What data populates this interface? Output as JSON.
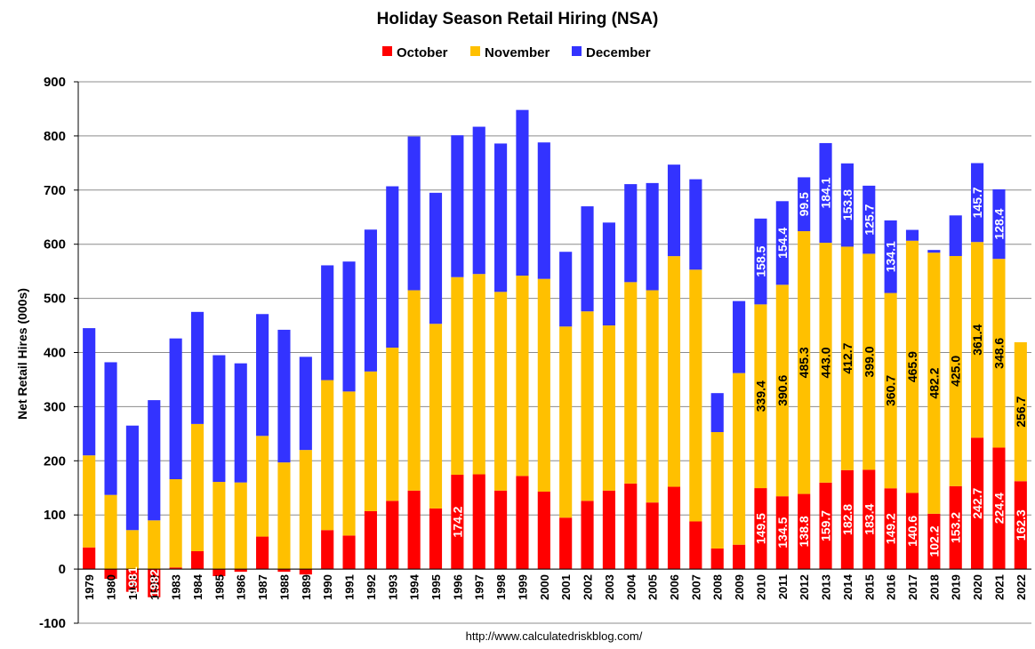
{
  "chart_data": {
    "type": "bar",
    "stacked": true,
    "title": "Holiday Season Retail Hiring (NSA)",
    "ylabel": "Net Retail Hires (000s)",
    "xlabel": "",
    "footer": "http://www.calculatedriskblog.com/",
    "ylim": [
      -100,
      900
    ],
    "yticks": [
      -100,
      0,
      100,
      200,
      300,
      400,
      500,
      600,
      700,
      800,
      900
    ],
    "grid": true,
    "legend_position": "top",
    "categories": [
      "1979",
      "1980",
      "1981",
      "1982",
      "1983",
      "1984",
      "1985",
      "1986",
      "1987",
      "1988",
      "1989",
      "1990",
      "1991",
      "1992",
      "1993",
      "1994",
      "1995",
      "1996",
      "1997",
      "1998",
      "1999",
      "2000",
      "2001",
      "2002",
      "2003",
      "2004",
      "2005",
      "2006",
      "2007",
      "2008",
      "2009",
      "2010",
      "2011",
      "2012",
      "2013",
      "2014",
      "2015",
      "2016",
      "2017",
      "2018",
      "2019",
      "2020",
      "2021",
      "2022"
    ],
    "series": [
      {
        "name": "October",
        "color": "#ff0000",
        "values": [
          40,
          -18,
          -42,
          -52,
          3,
          33,
          -13,
          -5,
          60,
          -5,
          -10,
          72,
          62,
          107,
          126,
          145,
          112,
          174.2,
          175,
          145,
          172,
          143,
          95,
          126,
          145,
          158,
          123,
          152,
          88,
          38,
          45,
          149.5,
          134.5,
          138.8,
          159.7,
          182.8,
          183.4,
          149.2,
          140.6,
          102.2,
          153.2,
          242.7,
          224.4,
          162.3
        ]
      },
      {
        "name": "November",
        "color": "#ffc000",
        "values": [
          170,
          137,
          72,
          90,
          163,
          235,
          161,
          160,
          186,
          197,
          220,
          277,
          266,
          258,
          283,
          370,
          341,
          365,
          370,
          367,
          370,
          393,
          353,
          350,
          305,
          372,
          392,
          426,
          465,
          215,
          317,
          339.4,
          390.6,
          485.3,
          443.0,
          412.7,
          399.0,
          360.7,
          465.9,
          482.2,
          425.0,
          361.4,
          348.6,
          256.7
        ]
      },
      {
        "name": "December",
        "color": "#3333ff",
        "values": [
          235,
          245,
          193,
          222,
          260,
          207,
          234,
          220,
          225,
          245,
          172,
          212,
          240,
          262,
          298,
          284,
          242,
          262,
          272,
          274,
          306,
          252,
          138,
          194,
          190,
          181,
          198,
          169,
          167,
          72,
          133,
          158.5,
          154.4,
          99.5,
          184.1,
          153.8,
          125.7,
          134.1,
          20,
          5,
          75,
          145.7,
          128.4,
          0
        ]
      }
    ],
    "data_labels": {
      "October": [
        "",
        "",
        "1981",
        "1982",
        "",
        "",
        "",
        "",
        "",
        "",
        "",
        "",
        "",
        "",
        "",
        "",
        "",
        "174.2",
        "",
        "",
        "",
        "",
        "",
        "",
        "",
        "",
        "",
        "",
        "",
        "",
        "",
        "149.5",
        "134.5",
        "138.8",
        "159.7",
        "182.8",
        "183.4",
        "149.2",
        "140.6",
        "102.2",
        "153.2",
        "242.7",
        "224.4",
        "162.3"
      ],
      "November": [
        "",
        "",
        "",
        "",
        "",
        "",
        "",
        "",
        "",
        "",
        "",
        "",
        "",
        "",
        "",
        "",
        "",
        "",
        "",
        "",
        "",
        "",
        "",
        "",
        "",
        "",
        "",
        "",
        "",
        "",
        "",
        "339.4",
        "390.6",
        "485.3",
        "443.0",
        "412.7",
        "399.0",
        "360.7",
        "465.9",
        "482.2",
        "425.0",
        "361.4",
        "348.6",
        "256.7"
      ],
      "December": [
        "",
        "",
        "",
        "",
        "",
        "",
        "",
        "",
        "",
        "",
        "",
        "",
        "",
        "",
        "",
        "",
        "",
        "",
        "",
        "",
        "",
        "",
        "",
        "",
        "",
        "",
        "",
        "",
        "",
        "",
        "",
        "158.5",
        "154.4",
        "99.5",
        "184.1",
        "153.8",
        "125.7",
        "134.1",
        "",
        "",
        "",
        "145.7",
        "128.4",
        ""
      ]
    }
  }
}
